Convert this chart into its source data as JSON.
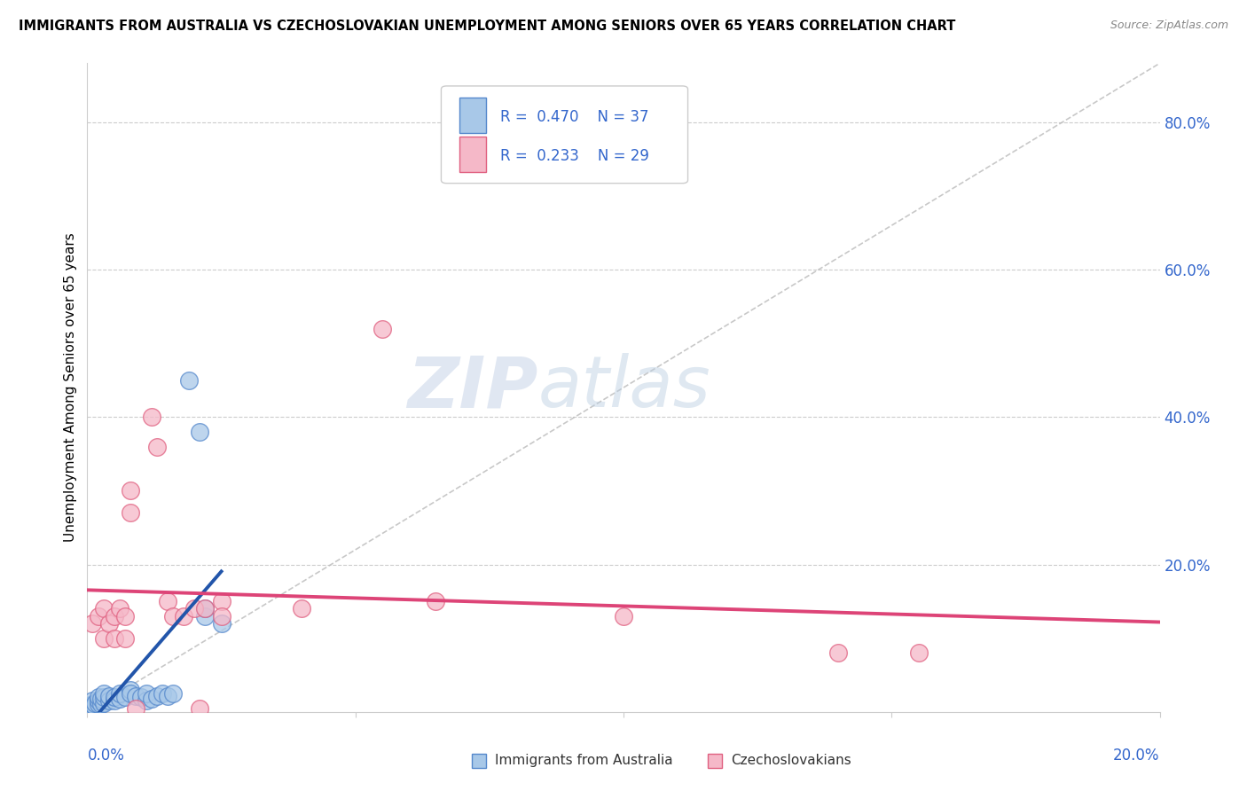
{
  "title": "IMMIGRANTS FROM AUSTRALIA VS CZECHOSLOVAKIAN UNEMPLOYMENT AMONG SENIORS OVER 65 YEARS CORRELATION CHART",
  "source": "Source: ZipAtlas.com",
  "ylabel": "Unemployment Among Seniors over 65 years",
  "legend_label1": "Immigrants from Australia",
  "legend_label2": "Czechoslovakians",
  "R1": "0.470",
  "N1": "37",
  "R2": "0.233",
  "N2": "29",
  "color_blue_fill": "#a8c8e8",
  "color_pink_fill": "#f5b8c8",
  "color_blue_edge": "#5588cc",
  "color_pink_edge": "#e06080",
  "color_blue_line": "#2255aa",
  "color_pink_line": "#dd4477",
  "color_diag": "#bbbbbb",
  "watermark_color": "#d0dff0",
  "blue_dots": [
    [
      0.0005,
      0.005
    ],
    [
      0.0008,
      0.008
    ],
    [
      0.001,
      0.01
    ],
    [
      0.001,
      0.015
    ],
    [
      0.0012,
      0.008
    ],
    [
      0.0015,
      0.012
    ],
    [
      0.002,
      0.01
    ],
    [
      0.002,
      0.015
    ],
    [
      0.002,
      0.02
    ],
    [
      0.0025,
      0.01
    ],
    [
      0.0025,
      0.018
    ],
    [
      0.003,
      0.012
    ],
    [
      0.003,
      0.02
    ],
    [
      0.003,
      0.025
    ],
    [
      0.004,
      0.015
    ],
    [
      0.004,
      0.022
    ],
    [
      0.005,
      0.015
    ],
    [
      0.005,
      0.02
    ],
    [
      0.006,
      0.018
    ],
    [
      0.006,
      0.025
    ],
    [
      0.007,
      0.02
    ],
    [
      0.008,
      0.03
    ],
    [
      0.008,
      0.025
    ],
    [
      0.009,
      0.022
    ],
    [
      0.01,
      0.02
    ],
    [
      0.011,
      0.015
    ],
    [
      0.011,
      0.025
    ],
    [
      0.012,
      0.018
    ],
    [
      0.013,
      0.022
    ],
    [
      0.014,
      0.025
    ],
    [
      0.015,
      0.022
    ],
    [
      0.016,
      0.025
    ],
    [
      0.019,
      0.45
    ],
    [
      0.021,
      0.38
    ],
    [
      0.022,
      0.13
    ],
    [
      0.022,
      0.14
    ],
    [
      0.025,
      0.12
    ]
  ],
  "pink_dots": [
    [
      0.001,
      0.12
    ],
    [
      0.002,
      0.13
    ],
    [
      0.003,
      0.14
    ],
    [
      0.003,
      0.1
    ],
    [
      0.004,
      0.12
    ],
    [
      0.005,
      0.13
    ],
    [
      0.005,
      0.1
    ],
    [
      0.006,
      0.14
    ],
    [
      0.007,
      0.13
    ],
    [
      0.007,
      0.1
    ],
    [
      0.008,
      0.27
    ],
    [
      0.008,
      0.3
    ],
    [
      0.009,
      0.005
    ],
    [
      0.012,
      0.4
    ],
    [
      0.013,
      0.36
    ],
    [
      0.015,
      0.15
    ],
    [
      0.016,
      0.13
    ],
    [
      0.018,
      0.13
    ],
    [
      0.02,
      0.14
    ],
    [
      0.021,
      0.005
    ],
    [
      0.022,
      0.14
    ],
    [
      0.025,
      0.15
    ],
    [
      0.025,
      0.13
    ],
    [
      0.04,
      0.14
    ],
    [
      0.055,
      0.52
    ],
    [
      0.065,
      0.15
    ],
    [
      0.1,
      0.13
    ],
    [
      0.14,
      0.08
    ],
    [
      0.155,
      0.08
    ]
  ],
  "xmin": 0.0,
  "xmax": 0.2,
  "ymin": 0.0,
  "ymax": 0.88
}
